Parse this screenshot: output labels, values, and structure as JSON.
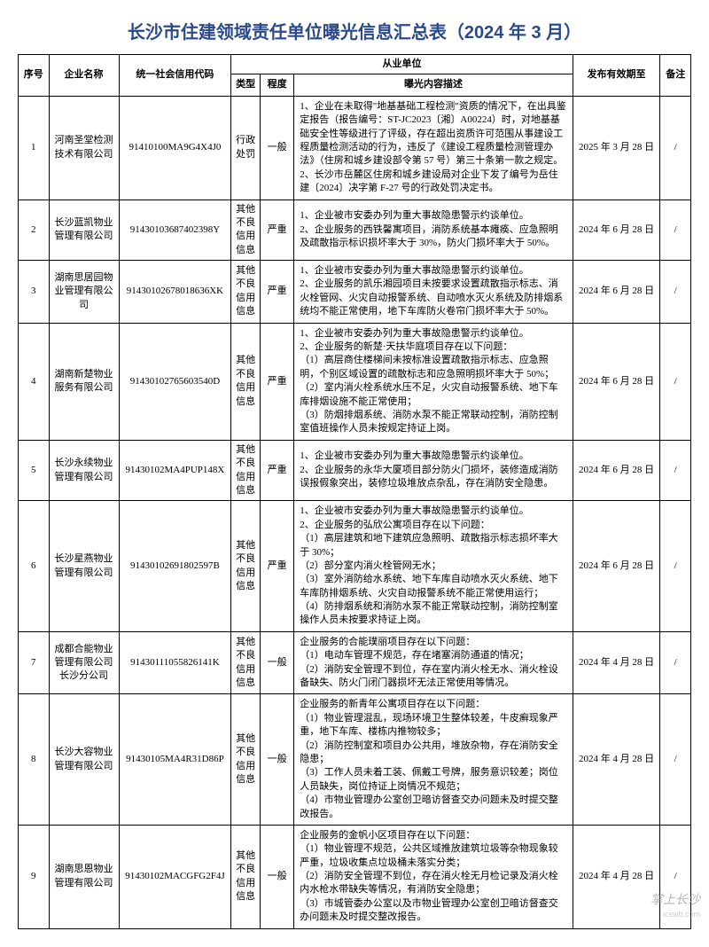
{
  "title": "长沙市住建领域责任单位曝光信息汇总表（2024 年 3 月）",
  "header": {
    "group": "从业单位",
    "seq": "序号",
    "name": "企业名称",
    "code": "统一社会信用代码",
    "type": "类型",
    "level": "程度",
    "desc": "曝光内容描述",
    "date": "发布有效期至",
    "note": "备注"
  },
  "rows": [
    {
      "seq": "1",
      "name": "河南圣堂检测技术有限公司",
      "code": "91410100MA9G4X4J0",
      "type": "行政处罚",
      "level": "一般",
      "desc": "1、企业在未取得\"地基基础工程检测\"资质的情况下，在出具鉴定报告（报告编号：ST-JC2023〔湘〕A00224）时，对地基基础安全性等级进行了评级，存在超出资质许可范围从事建设工程质量检测活动的行为，违反了《建设工程质量检测管理办法》（住房和城乡建设部令第 57 号）第三十条第一款之规定。\n2、长沙市岳麓区住房和城乡建设局对企业下发了编号为岳住建〔2024〕决字第 F-27 号的行政处罚决定书。",
      "date": "2025 年 3 月 28 日",
      "note": "/"
    },
    {
      "seq": "2",
      "name": "长沙蓝凯物业管理有限公司",
      "code": "91430103687402398Y",
      "type": "其他不良信用信息",
      "level": "严重",
      "desc": "1、企业被市安委办列为重大事故隐患警示约谈单位。\n2、企业服务的西铁馨寓项目，消防系统基本瘫痪、应急照明及疏散指示标识损坏率大于 30%，防火门损坏率大于 50%。",
      "date": "2024 年 6 月 28 日",
      "note": "/"
    },
    {
      "seq": "3",
      "name": "湖南思居园物业管理有限公司",
      "code": "91430102678018636XK",
      "type": "其他不良信用信息",
      "level": "严重",
      "desc": "1、企业被市安委办列为重大事故隐患警示约谈单位。\n2、企业服务的凯乐湘园项目未按要求设置疏散指示标志、消火栓管网、火灾自动报警系统、自动喷水灭火系统及防排烟系统均不能正常使用，地下车库防火卷帘门损坏率大于 50%。",
      "date": "2024 年 6 月 28 日",
      "note": "/"
    },
    {
      "seq": "4",
      "name": "湖南新楚物业服务有限公司",
      "code": "91430102765603540D",
      "type": "其他不良信用信息",
      "level": "严重",
      "desc": "1、企业被市安委办列为重大事故隐患警示约谈单位。\n2、企业服务的新楚·天扶华庭项目存在以下问题：\n（1）高层商住楼梯间未按标准设置疏散指示标志、应急照明，个别区域设置的疏散标志和应急照明损坏率大于 50%；\n（2）室内消火栓系统水压不足，火灾自动报警系统、地下车库排烟设施不能正常使用；\n（3）防烟排烟系统、消防水泵不能正常联动控制，消防控制室值班操作人员未按规定持证上岗。",
      "date": "2024 年 6 月 28 日",
      "note": "/"
    },
    {
      "seq": "5",
      "name": "长沙永续物业管理有限公司",
      "code": "91430102MA4PUP148X",
      "type": "其他不良信用信息",
      "level": "严重",
      "desc": "1、企业被市安委办列为重大事故隐患警示约谈单位。\n2、企业服务的永华大厦项目部分防火门损坏，装修造成消防误报假象突出，装修垃圾堆放点杂乱，存在消防安全隐患。",
      "date": "2024 年 6 月 28 日",
      "note": "/"
    },
    {
      "seq": "6",
      "name": "长沙星燕物业管理有限公司",
      "code": "91430102691802597B",
      "type": "其他不良信用信息",
      "level": "严重",
      "desc": "1、企业被市安委办列为重大事故隐患警示约谈单位。\n2、企业服务的弘欣公寓项目存在以下问题：\n（1）高层建筑和地下建筑应急照明、疏散指示标志损坏率大于 30%；\n（2）部分室内消火栓管网无水；\n（3）室外消防给水系统、地下车库自动喷水灭火系统、地下车库防排烟系统、火灾自动报警系统不能正常使用运行；\n（4）防排烟系统和消防水泵不能正常联动控制，消防控制室操作人员未按要求持证上岗。",
      "date": "2024 年 6 月 28 日",
      "note": "/"
    },
    {
      "seq": "7",
      "name": "成都合能物业管理有限公司长沙分公司",
      "code": "91430111055826141K",
      "type": "其他不良信用信息",
      "level": "一般",
      "desc": "企业服务的合能璞丽项目存在以下问题：\n（1）电动车管理不规范，存在堵塞消防通道的情况；\n（2）消防安全管理不到位，存在室内消火栓无水、消火栓设备缺失、防火门闭门器损坏无法正常使用等情况。",
      "date": "2024 年 4 月 28 日",
      "note": "/"
    },
    {
      "seq": "8",
      "name": "长沙大容物业管理有限公司",
      "code": "91430105MA4R31D86P",
      "type": "其他不良信用信息",
      "level": "一般",
      "desc": "企业服务的新青年公寓项目存在以下问题：\n（1）物业管理混乱，现场环境卫生整体较差，牛皮癣现象严重，地下车库、楼栋内推物较多；\n（2）消防控制室和项目办公共用，堆放杂物，存在消防安全隐患；\n（3）工作人员未着工装、佩戴工号牌，服务意识较差；岗位人员缺失，岗位持证上岗情况不规范；\n（4）市物业管理办公室创卫暗访督查交办问题未及时提交整改报告。",
      "date": "2024 年 4 月 28 日",
      "note": "/"
    },
    {
      "seq": "9",
      "name": "湖南思恩物业管理有限公司",
      "code": "91430102MACGFG2F4J",
      "type": "其他不良信用信息",
      "level": "一般",
      "desc": "企业服务的金帆小区项目存在以下问题：\n（1）物业管理不规范，公共区域推放建筑垃圾等杂物现象较严重，垃圾收集点垃圾桶未落实分类；\n（2）消防安全管理不到位，存在消火栓无月检记录及消火栓内水枪水带缺失等情况，有消防安全隐患；\n（3）市城管委办公室以及市物业管理办公室创卫暗访督查交办问题未及时提交整改报告。",
      "date": "2024 年 4 月 28 日",
      "note": "/"
    }
  ],
  "watermark": "掌上长沙",
  "watermark_sub": "icswb.com",
  "styling": {
    "title_color": "#2b4a8b",
    "title_fontsize": 20,
    "body_fontsize": 11,
    "border_color": "#000000",
    "background": "#ffffff"
  }
}
